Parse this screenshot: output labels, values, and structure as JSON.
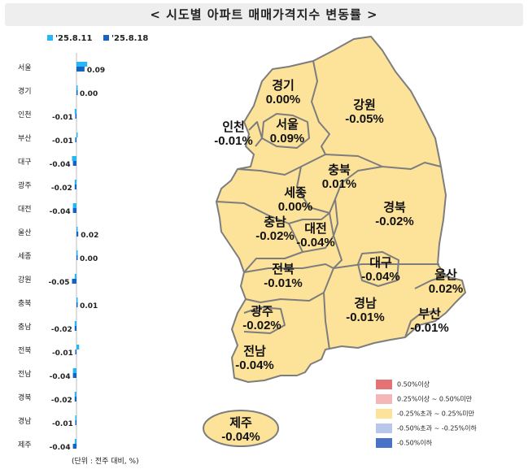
{
  "header": {
    "title": "< 시도별 아파트 매매가격지수 변동률 >"
  },
  "legend": [
    {
      "label": "'25.8.11",
      "color": "#29b6f6"
    },
    {
      "label": "'25.8.18",
      "color": "#1565c0"
    }
  ],
  "unit_note": "(단위 : 전주 대비, %)",
  "chart_data": {
    "type": "bar",
    "orientation": "horizontal",
    "categories": [
      "서울",
      "경기",
      "인천",
      "부산",
      "대구",
      "광주",
      "대전",
      "울산",
      "세종",
      "강원",
      "충북",
      "충남",
      "전북",
      "전남",
      "경북",
      "경남",
      "제주"
    ],
    "series": [
      {
        "name": "'25.8.11",
        "values": [
          0.12,
          0.01,
          -0.02,
          0.0,
          -0.05,
          -0.02,
          -0.04,
          0.01,
          0.01,
          -0.02,
          0.01,
          -0.02,
          0.03,
          -0.04,
          -0.02,
          -0.01,
          -0.02
        ]
      },
      {
        "name": "'25.8.18",
        "values": [
          0.09,
          0.0,
          -0.01,
          -0.01,
          -0.04,
          -0.02,
          -0.04,
          0.02,
          0.0,
          -0.05,
          0.01,
          -0.02,
          -0.01,
          -0.04,
          -0.02,
          -0.01,
          -0.04
        ]
      }
    ],
    "value_labels": [
      "0.09",
      "0.00",
      "-0.01",
      "-0.01",
      "-0.04",
      "-0.02",
      "-0.04",
      "0.02",
      "0.00",
      "-0.05",
      "0.01",
      "-0.02",
      "-0.01",
      "-0.04",
      "-0.02",
      "-0.01",
      "-0.04"
    ]
  },
  "map": {
    "regions": [
      {
        "name": "경기",
        "value": "0.00%"
      },
      {
        "name": "강원",
        "value": "-0.05%"
      },
      {
        "name": "인천",
        "value": "-0.01%"
      },
      {
        "name": "서울",
        "value": "0.09%"
      },
      {
        "name": "충북",
        "value": "0.01%"
      },
      {
        "name": "세종",
        "value": "0.00%"
      },
      {
        "name": "경북",
        "value": "-0.02%"
      },
      {
        "name": "충남",
        "value": "-0.02%"
      },
      {
        "name": "대전",
        "value": "-0.04%"
      },
      {
        "name": "대구",
        "value": "-0.04%"
      },
      {
        "name": "울산",
        "value": "0.02%"
      },
      {
        "name": "전북",
        "value": "-0.01%"
      },
      {
        "name": "경남",
        "value": "-0.01%"
      },
      {
        "name": "부산",
        "value": "-0.01%"
      },
      {
        "name": "광주",
        "value": "-0.02%"
      },
      {
        "name": "전남",
        "value": "-0.04%"
      },
      {
        "name": "제주",
        "value": "-0.04%"
      }
    ],
    "fill_color": "#fde39a",
    "border_color": "#7d7d7d",
    "legend": [
      {
        "label": "0.50%이상",
        "color": "#e57373"
      },
      {
        "label": "0.25%이상 ~ 0.50%미만",
        "color": "#f4b6b6"
      },
      {
        "label": "-0.25%초과 ~ 0.25%미만",
        "color": "#fde39a"
      },
      {
        "label": "-0.50%초과 ~ -0.25%이하",
        "color": "#b9c7ea"
      },
      {
        "label": "-0.50%이하",
        "color": "#4a72c9"
      }
    ]
  }
}
